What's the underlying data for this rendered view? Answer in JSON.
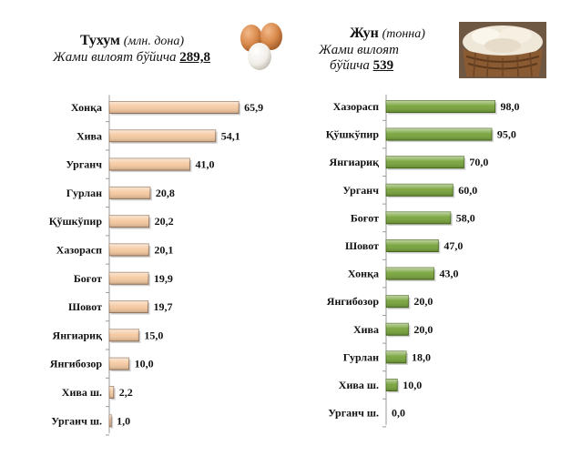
{
  "chart_data": [
    {
      "type": "bar",
      "orientation": "horizontal",
      "title": "Тухум",
      "unit": "(млн. дона)",
      "total_label": "Жами вилоят бўйича",
      "total_value": "289,8",
      "categories": [
        "Хонқа",
        "Хива",
        "Урганч",
        "Гурлан",
        "Қўшкўпир",
        "Хазорасп",
        "Боғот",
        "Шовот",
        "Янгиариқ",
        "Янгибозор",
        "Хива ш.",
        "Урганч ш."
      ],
      "values": [
        65.9,
        54.1,
        41.0,
        20.8,
        20.2,
        20.1,
        19.9,
        19.7,
        15.0,
        10.0,
        2.2,
        1.0
      ],
      "value_labels": [
        "65,9",
        "54,1",
        "41,0",
        "20,8",
        "20,2",
        "20,1",
        "19,9",
        "19,7",
        "15,0",
        "10,0",
        "2,2",
        "1,0"
      ],
      "xlim": [
        0,
        70
      ],
      "color": "#f5c9a0",
      "edge_color": "#9a7b62"
    },
    {
      "type": "bar",
      "orientation": "horizontal",
      "title": "Жун",
      "unit": "(тонна)",
      "total_label_line1": "Жами вилоят",
      "total_label_line2": "бўйича",
      "total_value": "539",
      "categories": [
        "Хазорасп",
        "Қўшкўпир",
        "Янгиариқ",
        "Урганч",
        "Боғот",
        "Шовот",
        "Хонқа",
        "Янгибозор",
        "Хива",
        "Гурлан",
        "Хива ш.",
        "Урганч ш."
      ],
      "values": [
        98.0,
        95.0,
        70.0,
        60.0,
        58.0,
        47.0,
        43.0,
        20.0,
        20.0,
        18.0,
        10.0,
        0.0
      ],
      "value_labels": [
        "98,0",
        "95,0",
        "70,0",
        "60,0",
        "58,0",
        "47,0",
        "43,0",
        "20,0",
        "20,0",
        "18,0",
        "10,0",
        "0,0"
      ],
      "xlim": [
        0,
        100
      ],
      "color": "#77a33a",
      "edge_color": "#4d6e22"
    }
  ],
  "images": {
    "eggs_icon": "egg-icon",
    "wool_icon": "wool-basket-icon"
  }
}
